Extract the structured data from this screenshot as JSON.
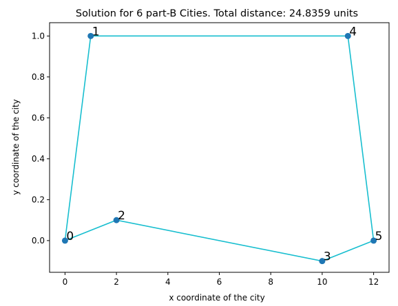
{
  "chart_data": {
    "type": "line",
    "title": "Solution for 6 part-B Cities. Total distance: 24.8359 units",
    "xlabel": "x coordinate of the city",
    "ylabel": "y coordinate of the city",
    "xlim": [
      -0.6,
      12.6
    ],
    "ylim": [
      -0.155,
      1.065
    ],
    "xticks": [
      0,
      2,
      4,
      6,
      8,
      10,
      12
    ],
    "yticks": [
      0.0,
      0.2,
      0.4,
      0.6,
      0.8,
      1.0
    ],
    "xtick_labels": [
      "0",
      "2",
      "4",
      "6",
      "8",
      "10",
      "12"
    ],
    "ytick_labels": [
      "0.0",
      "0.2",
      "0.4",
      "0.6",
      "0.8",
      "1.0"
    ],
    "grid": false,
    "line_color": "#17becf",
    "marker_color": "#1f77b4",
    "cities": [
      {
        "label": "0",
        "x": 0,
        "y": 0.0
      },
      {
        "label": "1",
        "x": 1,
        "y": 1.0
      },
      {
        "label": "2",
        "x": 2,
        "y": 0.1
      },
      {
        "label": "3",
        "x": 10,
        "y": -0.1
      },
      {
        "label": "4",
        "x": 11,
        "y": 1.0
      },
      {
        "label": "5",
        "x": 12,
        "y": 0.0
      }
    ],
    "route": [
      "0",
      "1",
      "4",
      "5",
      "3",
      "2",
      "0"
    ]
  }
}
